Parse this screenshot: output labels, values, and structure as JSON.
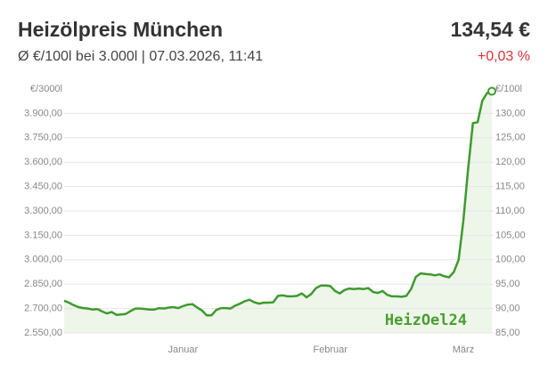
{
  "header": {
    "title": "Heizölpreis München",
    "price": "134,54 €",
    "subtitle": "Ø €/100l bei 3.000l | 07.03.2026, 11:41",
    "change": "+0,03 %"
  },
  "chart_data": {
    "type": "line",
    "logo": "HeizOel24",
    "ylabel": "€/3000l",
    "y2label": "€/100l",
    "categories": [
      null,
      null,
      null,
      null,
      null,
      null,
      null,
      null,
      null,
      null,
      null,
      null,
      null,
      null,
      null,
      null,
      null,
      null,
      null,
      null,
      null,
      null,
      null,
      null,
      null,
      "Januar",
      null,
      null,
      null,
      null,
      null,
      null,
      null,
      null,
      null,
      null,
      null,
      null,
      null,
      null,
      null,
      null,
      null,
      null,
      null,
      null,
      null,
      null,
      null,
      null,
      null,
      null,
      null,
      null,
      null,
      null,
      "Februar",
      null,
      null,
      null,
      null,
      null,
      null,
      null,
      null,
      null,
      null,
      null,
      null,
      null,
      null,
      null,
      null,
      null,
      null,
      null,
      null,
      null,
      null,
      null,
      null,
      null,
      null,
      null,
      "März",
      null,
      null,
      null,
      null,
      null,
      null
    ],
    "series": [
      {
        "name": "Heizölpreis",
        "color": "#3e9a2e",
        "axis": "y2",
        "values": [
          91.6,
          91.2,
          90.7,
          90.3,
          90.1,
          90.0,
          89.8,
          89.9,
          89.4,
          89.0,
          89.3,
          88.7,
          88.8,
          88.9,
          89.5,
          90.0,
          90.0,
          89.9,
          89.8,
          89.8,
          90.1,
          90.0,
          90.2,
          90.3,
          90.1,
          90.5,
          90.8,
          90.9,
          90.2,
          89.6,
          88.6,
          88.6,
          89.7,
          90.1,
          90.1,
          90.0,
          90.6,
          91.0,
          91.5,
          91.8,
          91.3,
          91.0,
          91.2,
          91.2,
          91.3,
          92.6,
          92.7,
          92.5,
          92.5,
          92.6,
          93.1,
          92.3,
          93.0,
          94.2,
          94.7,
          94.7,
          94.6,
          93.6,
          93.1,
          93.8,
          94.1,
          94.0,
          94.1,
          94.0,
          94.2,
          93.4,
          93.2,
          93.6,
          92.8,
          92.5,
          92.5,
          92.4,
          92.6,
          94.0,
          96.5,
          97.2,
          97.1,
          97.0,
          96.8,
          97.0,
          96.6,
          96.4,
          97.5,
          100.0,
          108.0,
          118.5,
          128.0,
          128.2,
          132.6,
          134.2,
          134.54
        ]
      }
    ],
    "ylim": [
      2550,
      4050
    ],
    "yticks": [
      {
        "value": 2550,
        "label": "2.550,00"
      },
      {
        "value": 2700,
        "label": "2.700,00"
      },
      {
        "value": 2850,
        "label": "2.850,00"
      },
      {
        "value": 3000,
        "label": "3.000,00"
      },
      {
        "value": 3150,
        "label": "3.150,00"
      },
      {
        "value": 3300,
        "label": "3.300,00"
      },
      {
        "value": 3450,
        "label": "3.450,00"
      },
      {
        "value": 3600,
        "label": "3.600,00"
      },
      {
        "value": 3750,
        "label": "3.750,00"
      },
      {
        "value": 3900,
        "label": "3.900,00"
      }
    ],
    "y2lim": [
      85,
      135
    ],
    "y2ticks": [
      {
        "value": 85,
        "label": "85,00"
      },
      {
        "value": 90,
        "label": "90,00"
      },
      {
        "value": 95,
        "label": "95,00"
      },
      {
        "value": 100,
        "label": "100,00"
      },
      {
        "value": 105,
        "label": "105,00"
      },
      {
        "value": 110,
        "label": "110,00"
      },
      {
        "value": 115,
        "label": "115,00"
      },
      {
        "value": 120,
        "label": "120,00"
      },
      {
        "value": 125,
        "label": "125,00"
      },
      {
        "value": 130,
        "label": "130,00"
      }
    ],
    "grid": true
  }
}
